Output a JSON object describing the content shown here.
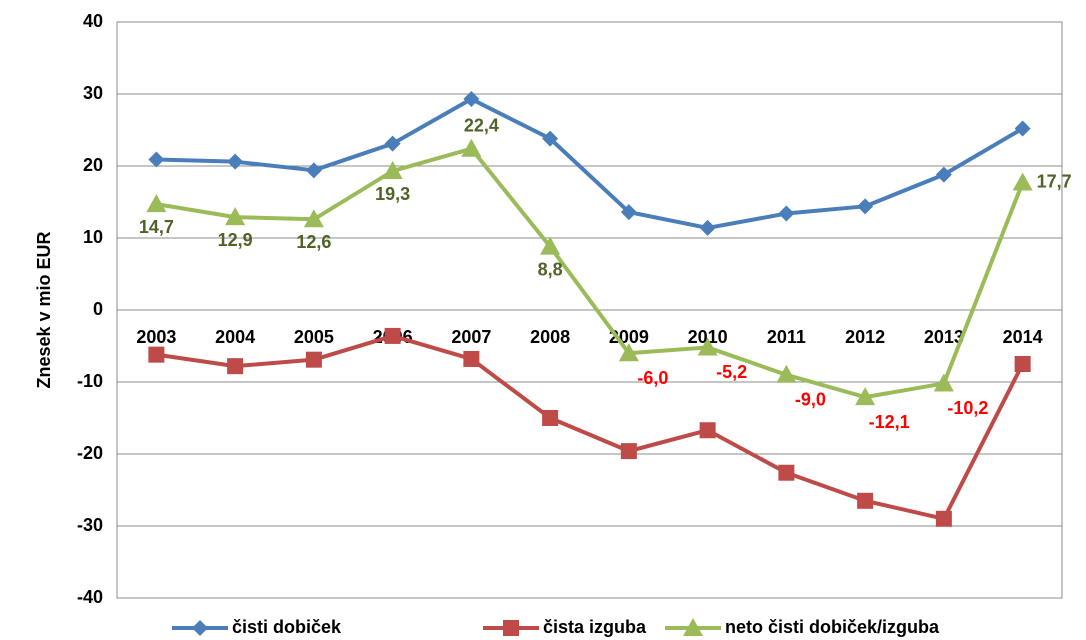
{
  "chart_data": {
    "type": "line",
    "y_label": "Znesek v mio EUR",
    "categories": [
      "2003",
      "2004",
      "2005",
      "2006",
      "2007",
      "2008",
      "2009",
      "2010",
      "2011",
      "2012",
      "2013",
      "2014"
    ],
    "series": [
      {
        "name": "čisti dobiček",
        "color": "#4a7ebb",
        "marker": "diamond",
        "values": [
          20.9,
          20.6,
          19.4,
          23.1,
          29.3,
          23.8,
          13.6,
          11.4,
          13.4,
          14.4,
          18.8,
          25.2
        ]
      },
      {
        "name": "čista izguba",
        "color": "#be4b48",
        "marker": "square",
        "values": [
          -6.2,
          -7.8,
          -6.9,
          -3.6,
          -6.8,
          -15.0,
          -19.6,
          -16.7,
          -22.6,
          -26.5,
          -29.0,
          -7.5
        ]
      },
      {
        "name": "neto čisti dobiček/izguba",
        "color": "#9bbb59",
        "marker": "triangle",
        "values": [
          14.7,
          12.9,
          12.6,
          19.3,
          22.4,
          8.8,
          -6.0,
          -5.2,
          -9.0,
          -12.1,
          -10.2,
          17.7
        ],
        "value_labels": [
          "14,7",
          "12,9",
          "12,6",
          "19,3",
          "22,4",
          "8,8",
          "-6,0",
          "-5,2",
          "-9,0",
          "-12,1",
          "-10,2",
          "17,7"
        ]
      }
    ],
    "ylim": [
      -40,
      40
    ],
    "yticks": [
      -40,
      -30,
      -20,
      -10,
      0,
      10,
      20,
      30,
      40
    ],
    "grid": true,
    "legend": "bottom"
  }
}
